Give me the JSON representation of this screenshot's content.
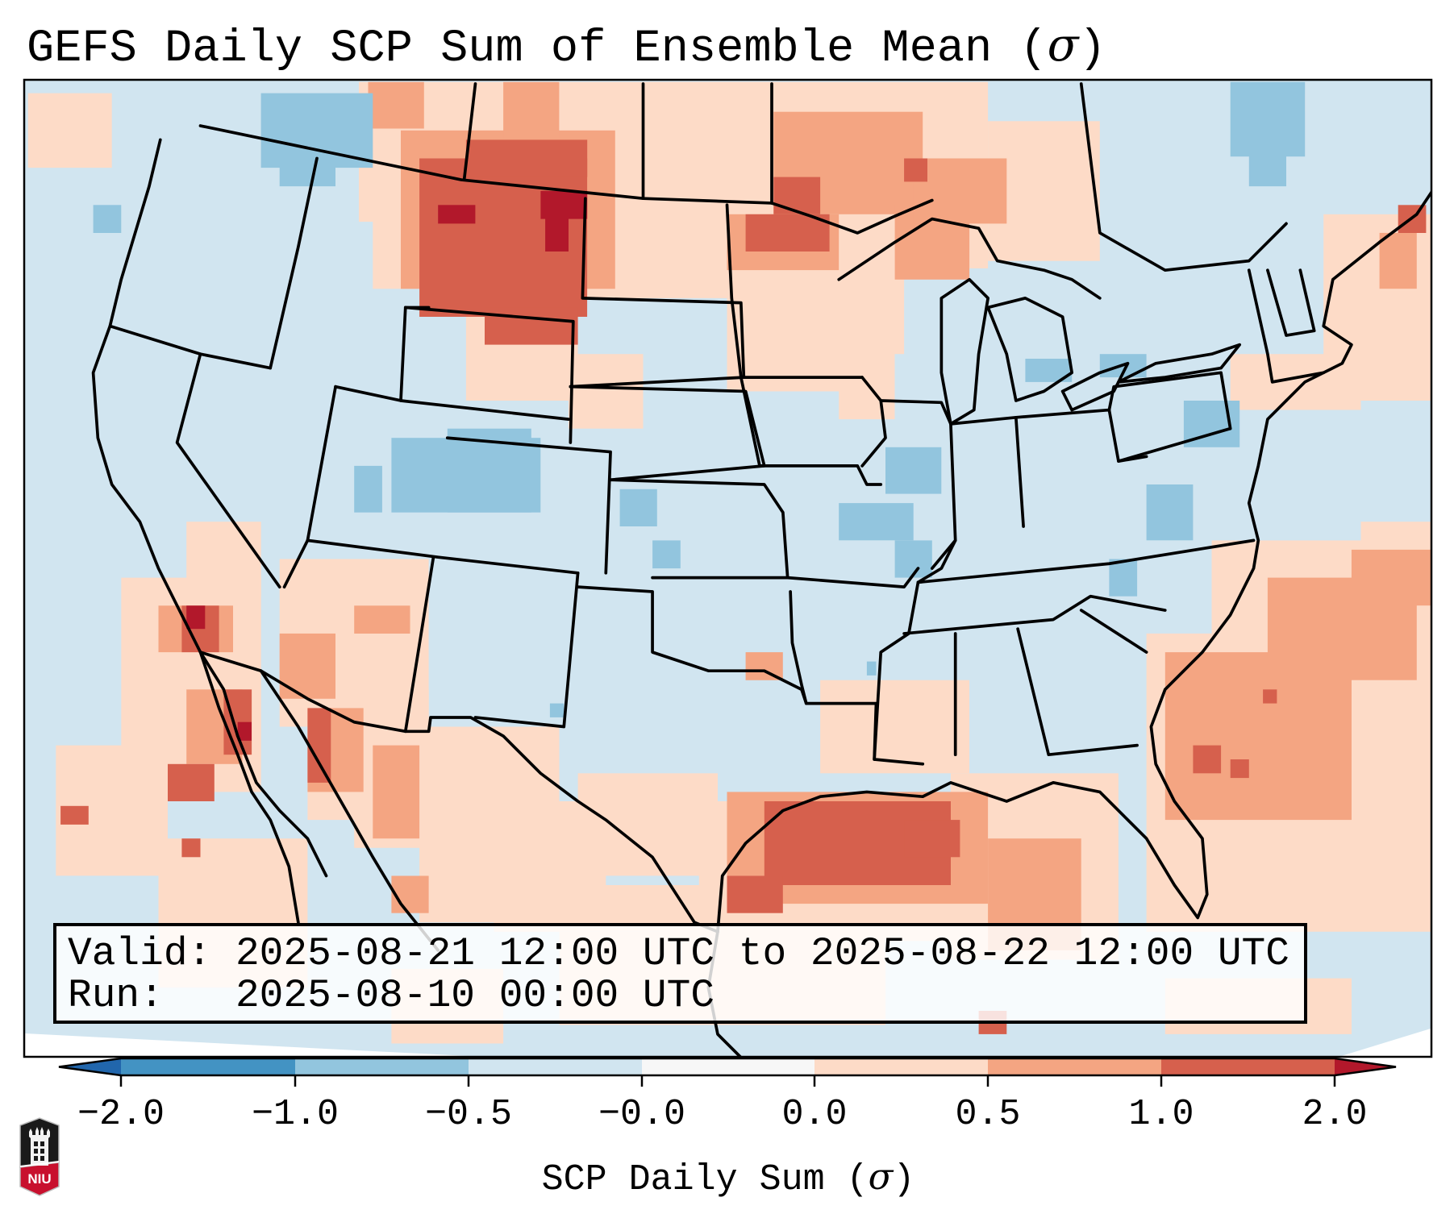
{
  "title": {
    "text": "GEFS Daily SCP Sum of Ensemble Mean (",
    "symbol": "σ",
    "close": ")"
  },
  "info_box": {
    "valid_label": "Valid:",
    "valid_value": "2025-08-21 12:00 UTC to 2025-08-22 12:00 UTC",
    "run_label": "Run:",
    "run_value": "2025-08-10 00:00 UTC"
  },
  "colorbar": {
    "label_text": "SCP Daily Sum (",
    "label_symbol": "σ",
    "label_close": ")",
    "extend": "both",
    "ticks": [
      "−2.0",
      "−1.0",
      "−0.5",
      "−0.0",
      "0.0",
      "0.5",
      "1.0",
      "2.0"
    ],
    "bins": [
      {
        "from": null,
        "to": -2.0,
        "color": "#2166ac"
      },
      {
        "from": -2.0,
        "to": -1.0,
        "color": "#4393c3"
      },
      {
        "from": -1.0,
        "to": -0.5,
        "color": "#92c5de"
      },
      {
        "from": -0.5,
        "to": -0.0,
        "color": "#d1e5f0"
      },
      {
        "from": -0.0,
        "to": 0.0,
        "color": "#f7f7f7"
      },
      {
        "from": 0.0,
        "to": 0.5,
        "color": "#fddbc7"
      },
      {
        "from": 0.5,
        "to": 1.0,
        "color": "#f4a582"
      },
      {
        "from": 1.0,
        "to": 2.0,
        "color": "#d6604d"
      },
      {
        "from": 2.0,
        "to": null,
        "color": "#b2182b"
      }
    ]
  },
  "logo": {
    "text": "NIU",
    "colors": {
      "top": "#1a1a1a",
      "bottom": "#c8102e"
    }
  },
  "map": {
    "region": "Continental United States",
    "background_color": "#d1e5f0",
    "outline_color": "#000000",
    "highlights": [
      {
        "name": "Montana / Wyoming / Dakotas",
        "level": "1.0 to 2.0+"
      },
      {
        "name": "Western Gulf of Mexico",
        "level": "1.0 to 2.0"
      },
      {
        "name": "Southern California / Baja",
        "level": "0.5 to 2.0+"
      },
      {
        "name": "Western Atlantic",
        "level": "0.5 to 1.0"
      },
      {
        "name": "Colorado / Illinois / Pennsylvania",
        "level": "-1.0 to -0.5"
      }
    ]
  }
}
